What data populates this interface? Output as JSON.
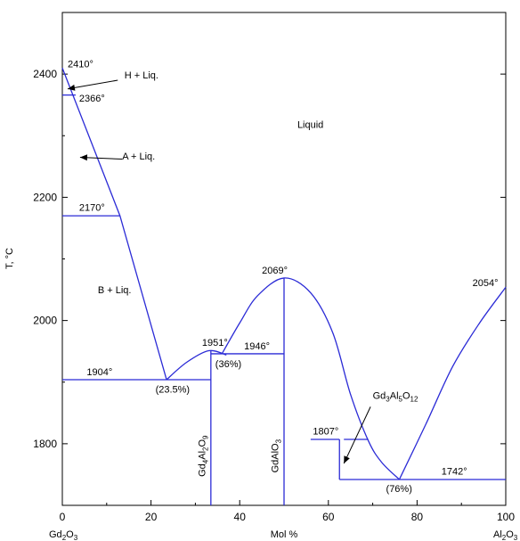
{
  "chart_data": {
    "type": "line",
    "title": "",
    "xlabel": "Mol %",
    "ylabel": "T, °C",
    "xlim": [
      0,
      100
    ],
    "ylim": [
      1700,
      2500
    ],
    "x_ticks": [
      0,
      20,
      40,
      60,
      80,
      100
    ],
    "y_ticks": [
      1800,
      2000,
      2200,
      2400
    ],
    "x_end_labels": {
      "left": {
        "main": "Gd",
        "sub1": "2",
        "mid": "O",
        "sub2": "3"
      },
      "right": {
        "main": "Al",
        "sub1": "2",
        "mid": "O",
        "sub2": "3"
      }
    },
    "grid": false,
    "line_color": "#2b2bd6",
    "curves": [
      {
        "name": "",
        "points": [
          [
            0,
            2410
          ],
          [
            13,
            2170
          ],
          [
            23.5,
            1904
          ]
        ]
      },
      {
        "name": "",
        "points": [
          [
            23.5,
            1904
          ],
          [
            28,
            1932
          ],
          [
            33,
            1951
          ],
          [
            37,
            1944
          ]
        ]
      },
      {
        "name": "",
        "points": [
          [
            36,
            1946
          ],
          [
            40,
            1996
          ],
          [
            44,
            2040
          ],
          [
            50,
            2069
          ],
          [
            56,
            2045
          ],
          [
            61,
            1980
          ],
          [
            65,
            1880
          ],
          [
            69,
            1805
          ],
          [
            72,
            1770
          ],
          [
            76,
            1742
          ]
        ]
      },
      {
        "name": "",
        "points": [
          [
            76,
            1742
          ],
          [
            82,
            1832
          ],
          [
            88,
            1925
          ],
          [
            94,
            1995
          ],
          [
            100,
            2054
          ]
        ]
      }
    ],
    "horizontal_lines": [
      {
        "y": 2366,
        "x": [
          0,
          3
        ]
      },
      {
        "y": 2170,
        "x": [
          0,
          13
        ]
      },
      {
        "y": 1904,
        "x": [
          0,
          33.5
        ]
      },
      {
        "y": 1946,
        "x": [
          33.5,
          50
        ]
      },
      {
        "y": 1807,
        "x": [
          56,
          62.5
        ]
      },
      {
        "y": 1807,
        "x": [
          63.5,
          69
        ]
      },
      {
        "y": 1742,
        "x": [
          62.5,
          100
        ]
      }
    ],
    "vertical_lines": [
      {
        "x": 33.5,
        "y": [
          1700,
          1951
        ]
      },
      {
        "x": 50,
        "y": [
          1700,
          2069
        ]
      },
      {
        "x": 62.5,
        "y": [
          1742,
          1807
        ]
      }
    ],
    "arrows": [
      {
        "from": [
          12.5,
          2390
        ],
        "to": [
          1.2,
          2376
        ]
      },
      {
        "from": [
          13.5,
          2262
        ],
        "to": [
          4,
          2265
        ]
      },
      {
        "from": [
          69.5,
          1860
        ],
        "to": [
          63.5,
          1768
        ]
      }
    ],
    "annotations": [
      {
        "text": "2410°",
        "x": 1.2,
        "y": 2411
      },
      {
        "text": "H + Liq.",
        "x": 14,
        "y": 2393
      },
      {
        "text": "2366°",
        "x": 3.8,
        "y": 2355
      },
      {
        "text": "Liquid",
        "x": 53,
        "y": 2313
      },
      {
        "text": "A + Liq.",
        "x": 13.5,
        "y": 2261
      },
      {
        "text": "2170°",
        "x": 3.8,
        "y": 2178
      },
      {
        "text": "B + Liq.",
        "x": 8,
        "y": 2044
      },
      {
        "text": "2069°",
        "x": 45,
        "y": 2076
      },
      {
        "text": "2054°",
        "x": 92.5,
        "y": 2056
      },
      {
        "text": "1951°",
        "x": 31.5,
        "y": 1959
      },
      {
        "text": "1946°",
        "x": 41,
        "y": 1953
      },
      {
        "text": "(36%)",
        "x": 34.5,
        "y": 1924
      },
      {
        "text": "1904°",
        "x": 5.5,
        "y": 1911
      },
      {
        "text": "(23.5%)",
        "x": 21,
        "y": 1883
      },
      {
        "text": "1807°",
        "x": 56.5,
        "y": 1815
      },
      {
        "text": "1742°",
        "x": 85.5,
        "y": 1750
      },
      {
        "text": "(76%)",
        "x": 73,
        "y": 1722
      }
    ],
    "compound_labels": [
      {
        "text": "Gd",
        "sub": "4",
        "mid": "Al",
        "sub2": "2",
        "end": "O",
        "sub3": "9",
        "x": 32.2,
        "y": 1780,
        "rotate": -90
      },
      {
        "text": "Gd",
        "sub": "",
        "mid": "Al",
        "sub2": "",
        "end": "O",
        "sub3": "3",
        "x": 48.7,
        "y": 1780,
        "rotate": -90
      }
    ],
    "horizontal_compound": {
      "text": "Gd",
      "sub": "3",
      "mid": "Al",
      "sub2": "5",
      "end": "O",
      "sub3": "12",
      "x": 70,
      "y": 1873
    }
  }
}
